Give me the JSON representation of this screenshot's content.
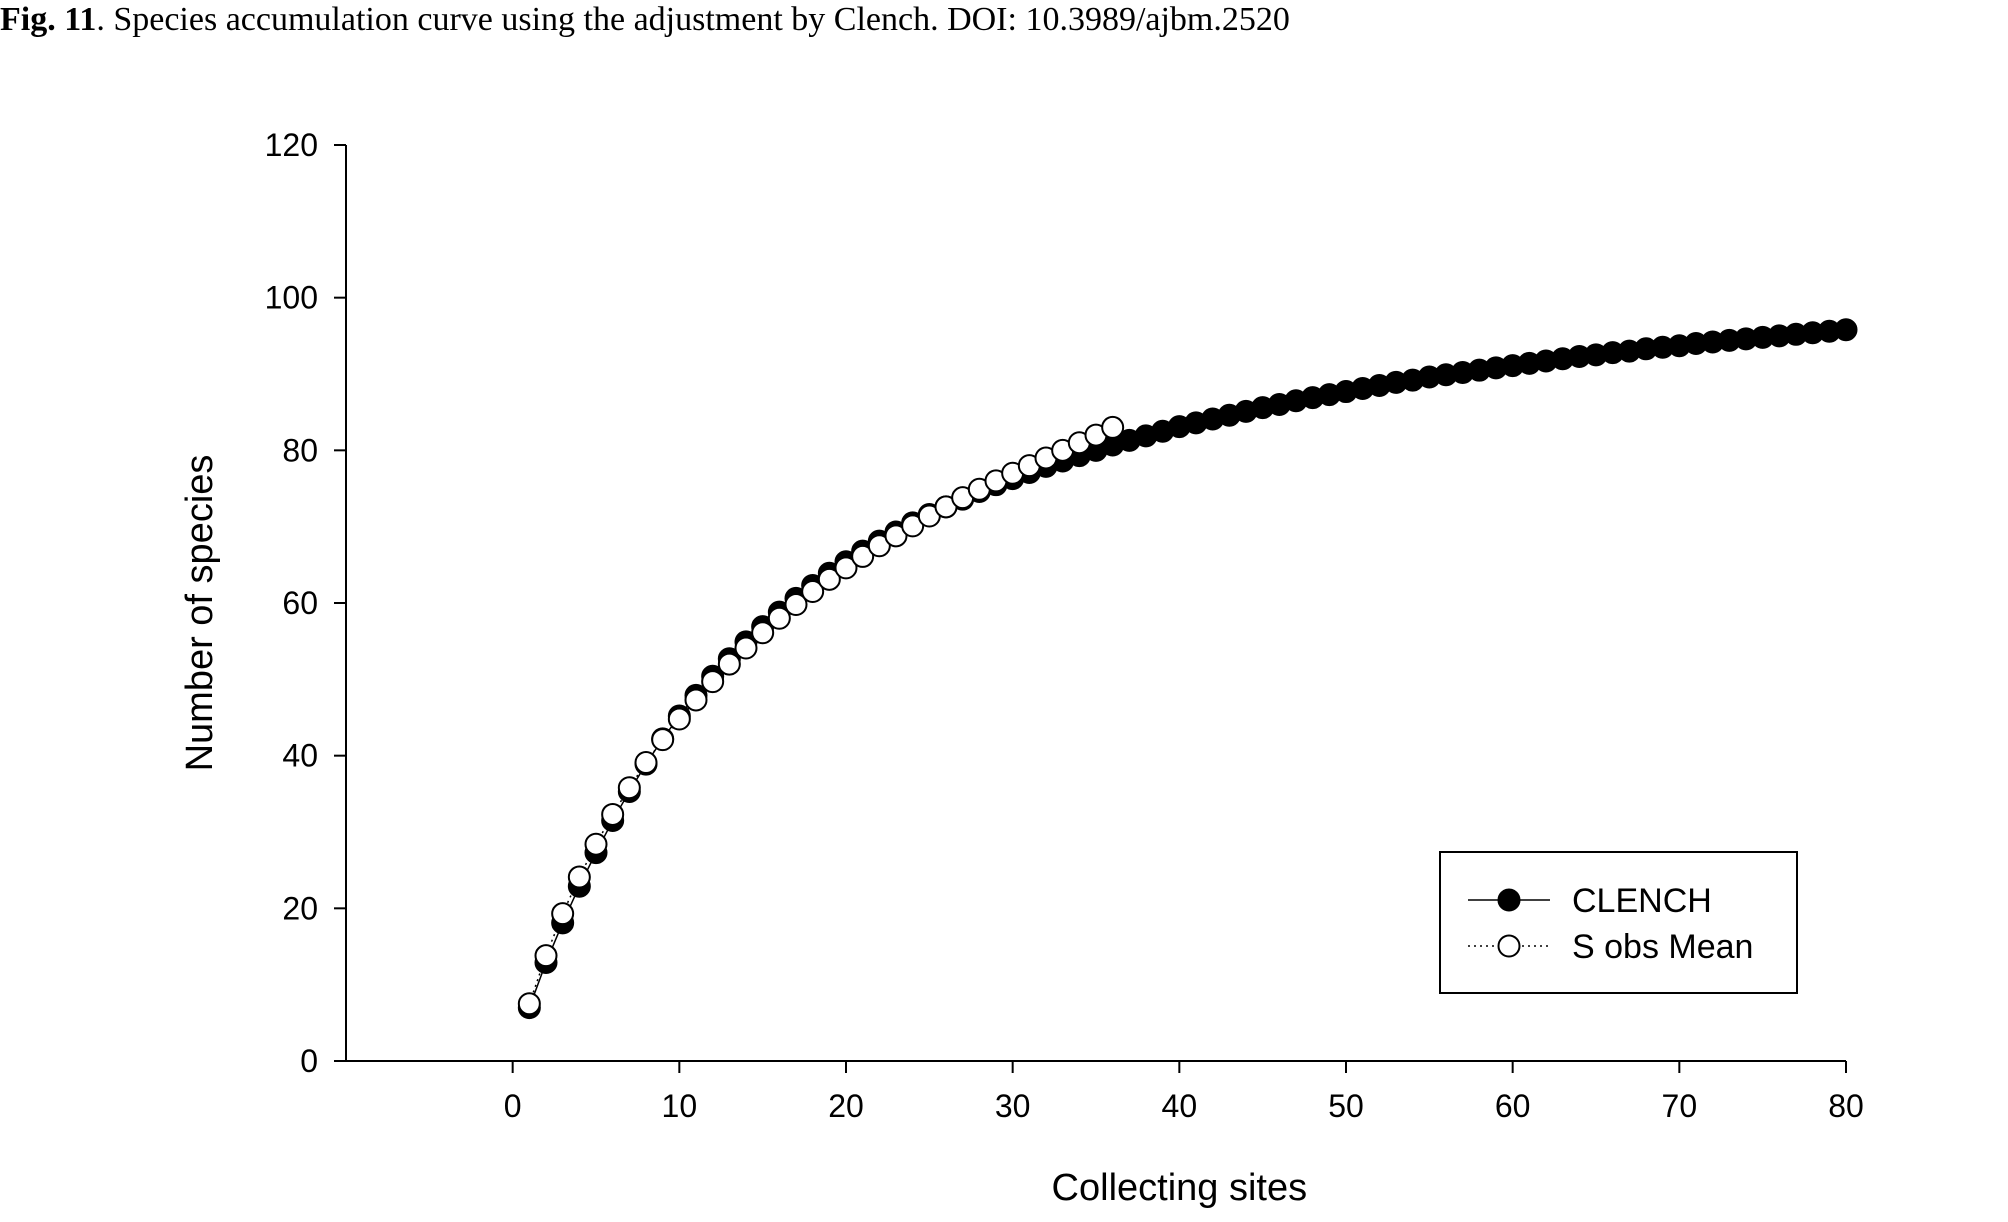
{
  "caption": {
    "label": "Fig. 11",
    "text": ". Species accumulation curve using the adjustment by Clench. DOI: 10.3989/ajbm.2520"
  },
  "chart_data": {
    "type": "scatter",
    "title": "",
    "xlabel": "Collecting sites",
    "ylabel": "Number of species",
    "xlim": [
      -10,
      80
    ],
    "ylim": [
      0,
      120
    ],
    "xticks": [
      0,
      10,
      20,
      30,
      40,
      50,
      60,
      70,
      80
    ],
    "yticks": [
      0,
      20,
      40,
      60,
      80,
      100,
      120
    ],
    "grid": false,
    "legend_position": "bottom-right",
    "series": [
      {
        "name": "CLENCH",
        "marker": "filled-circle",
        "line": "solid",
        "color": "#000000",
        "x": [
          1,
          2,
          3,
          4,
          5,
          6,
          7,
          8,
          9,
          10,
          11,
          12,
          13,
          14,
          15,
          16,
          17,
          18,
          19,
          20,
          21,
          22,
          23,
          24,
          25,
          26,
          27,
          28,
          29,
          30,
          31,
          32,
          33,
          34,
          35,
          36,
          37,
          38,
          39,
          40,
          41,
          42,
          43,
          44,
          45,
          46,
          47,
          48,
          49,
          50,
          51,
          52,
          53,
          54,
          55,
          56,
          57,
          58,
          59,
          60,
          61,
          62,
          63,
          64,
          65,
          66,
          67,
          68,
          69,
          70,
          71,
          72,
          73,
          74,
          75,
          76,
          77,
          78,
          79,
          80
        ],
        "y": [
          7.0,
          12.9,
          18.1,
          22.9,
          27.3,
          31.5,
          35.3,
          38.9,
          42.2,
          45.2,
          47.9,
          50.4,
          52.7,
          54.9,
          56.9,
          58.8,
          60.6,
          62.3,
          63.9,
          65.4,
          66.8,
          68.1,
          69.3,
          70.5,
          71.6,
          72.6,
          73.6,
          74.6,
          75.5,
          76.3,
          77.1,
          77.9,
          78.6,
          79.3,
          80.0,
          80.7,
          81.3,
          81.9,
          82.5,
          83.1,
          83.6,
          84.1,
          84.6,
          85.1,
          85.6,
          86.0,
          86.5,
          86.9,
          87.3,
          87.7,
          88.1,
          88.5,
          88.9,
          89.2,
          89.6,
          89.9,
          90.2,
          90.5,
          90.8,
          91.1,
          91.4,
          91.7,
          92.0,
          92.3,
          92.5,
          92.8,
          93.0,
          93.3,
          93.5,
          93.7,
          94.0,
          94.2,
          94.4,
          94.6,
          94.8,
          95.0,
          95.2,
          95.4,
          95.6,
          95.8
        ]
      },
      {
        "name": "S obs Mean",
        "marker": "open-circle",
        "line": "dotted",
        "color": "#000000",
        "x": [
          1,
          2,
          3,
          4,
          5,
          6,
          7,
          8,
          9,
          10,
          11,
          12,
          13,
          14,
          15,
          16,
          17,
          18,
          19,
          20,
          21,
          22,
          23,
          24,
          25,
          26,
          27,
          28,
          29,
          30,
          31,
          32,
          33,
          34,
          35,
          36
        ],
        "y": [
          7.5,
          13.8,
          19.3,
          24.1,
          28.4,
          32.3,
          35.8,
          39.1,
          42.1,
          44.8,
          47.3,
          49.7,
          52.0,
          54.1,
          56.1,
          58.0,
          59.8,
          61.5,
          63.1,
          64.6,
          66.1,
          67.5,
          68.8,
          70.1,
          71.4,
          72.6,
          73.8,
          74.9,
          76.0,
          77.0,
          78.0,
          79.0,
          80.0,
          81.0,
          82.0,
          83.0
        ]
      }
    ]
  }
}
